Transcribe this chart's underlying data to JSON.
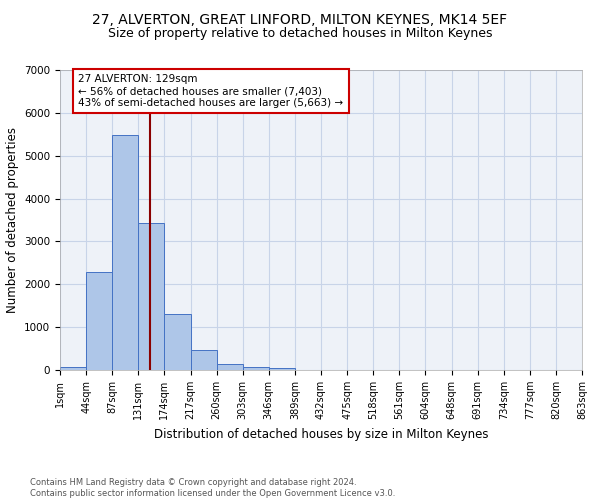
{
  "title1": "27, ALVERTON, GREAT LINFORD, MILTON KEYNES, MK14 5EF",
  "title2": "Size of property relative to detached houses in Milton Keynes",
  "xlabel": "Distribution of detached houses by size in Milton Keynes",
  "ylabel": "Number of detached properties",
  "footer1": "Contains HM Land Registry data © Crown copyright and database right 2024.",
  "footer2": "Contains public sector information licensed under the Open Government Licence v3.0.",
  "annotation_line1": "27 ALVERTON: 129sqm",
  "annotation_line2": "← 56% of detached houses are smaller (7,403)",
  "annotation_line3": "43% of semi-detached houses are larger (5,663) →",
  "bar_values": [
    75,
    2280,
    5480,
    3430,
    1310,
    460,
    150,
    80,
    45,
    0,
    0,
    0,
    0,
    0,
    0,
    0,
    0,
    0,
    0,
    0
  ],
  "bar_color": "#aec6e8",
  "bar_edge_color": "#4472c4",
  "tick_labels": [
    "1sqm",
    "44sqm",
    "87sqm",
    "131sqm",
    "174sqm",
    "217sqm",
    "260sqm",
    "303sqm",
    "346sqm",
    "389sqm",
    "432sqm",
    "475sqm",
    "518sqm",
    "561sqm",
    "604sqm",
    "648sqm",
    "691sqm",
    "734sqm",
    "777sqm",
    "820sqm",
    "863sqm"
  ],
  "vline_x": 2.93,
  "vline_color": "#8b0000",
  "ylim": [
    0,
    7000
  ],
  "yticks": [
    0,
    1000,
    2000,
    3000,
    4000,
    5000,
    6000,
    7000
  ],
  "grid_color": "#c8d4e8",
  "bg_color": "#eef2f8",
  "title1_fontsize": 10,
  "title2_fontsize": 9,
  "axis_fontsize": 8.5,
  "tick_fontsize": 7
}
